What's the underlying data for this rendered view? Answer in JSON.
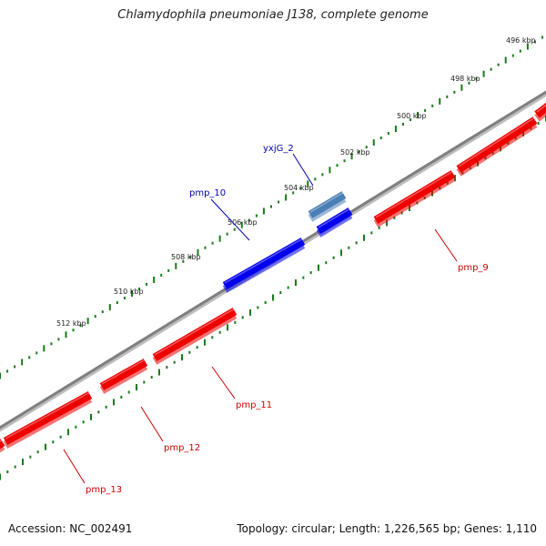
{
  "title": "Chlamydophila pneumoniae J138, complete genome",
  "footer": {
    "accession": "Accession: NC_002491",
    "summary": "Topology: circular; Length: 1,226,565 bp; Genes: 1,110"
  },
  "colors": {
    "backbone": "#808080",
    "forward_gene": "#0000ee",
    "reverse_gene": "#ee0000",
    "selected_gene": "#4a7fb5",
    "tick": "#1a7a1a",
    "label_forward": "#0000aa",
    "label_reverse": "#cc0000"
  },
  "ruler": {
    "unit": "kbp",
    "ticks": [
      {
        "label": "496 kbp"
      },
      {
        "label": "498 kbp"
      },
      {
        "label": "500 kbp"
      },
      {
        "label": "502 kbp"
      },
      {
        "label": "504 kbp"
      },
      {
        "label": "506 kbp"
      },
      {
        "label": "508 kbp"
      },
      {
        "label": "510 kbp"
      },
      {
        "label": "512 kbp"
      }
    ]
  },
  "genes": [
    {
      "name": "yxjG_2",
      "strand": "forward",
      "labeled": true
    },
    {
      "name": "pmp_10",
      "strand": "forward",
      "labeled": true
    },
    {
      "name": "pmp_9",
      "strand": "reverse",
      "labeled": true
    },
    {
      "name": "pmp_11",
      "strand": "reverse",
      "labeled": true
    },
    {
      "name": "pmp_12",
      "strand": "reverse",
      "labeled": true
    },
    {
      "name": "pmp_13",
      "strand": "reverse",
      "labeled": true
    }
  ]
}
